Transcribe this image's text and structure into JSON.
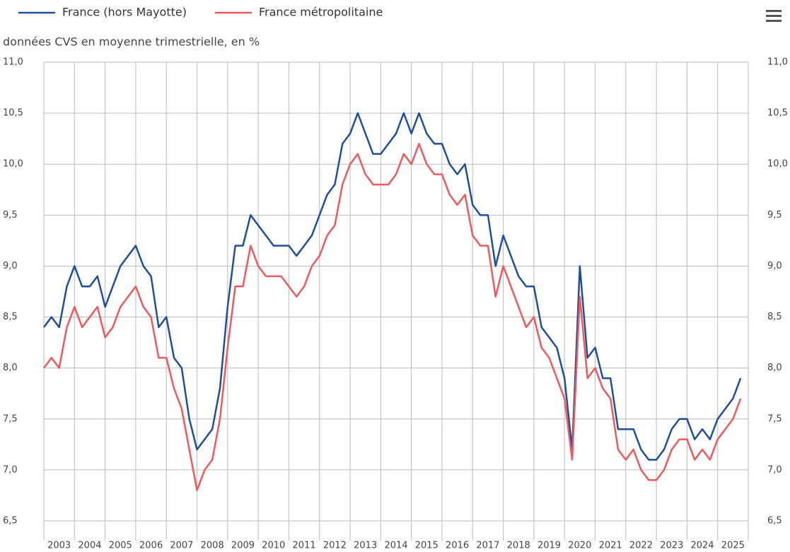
{
  "chart_data": {
    "type": "line",
    "subtitle": "données CVS en moyenne trimestrielle, en %",
    "x": [
      2003,
      2003.25,
      2003.5,
      2003.75,
      2004,
      2004.25,
      2004.5,
      2004.75,
      2005,
      2005.25,
      2005.5,
      2005.75,
      2006,
      2006.25,
      2006.5,
      2006.75,
      2007,
      2007.25,
      2007.5,
      2007.75,
      2008,
      2008.25,
      2008.5,
      2008.75,
      2009,
      2009.25,
      2009.5,
      2009.75,
      2010,
      2010.25,
      2010.5,
      2010.75,
      2011,
      2011.25,
      2011.5,
      2011.75,
      2012,
      2012.25,
      2012.5,
      2012.75,
      2013,
      2013.25,
      2013.5,
      2013.75,
      2014,
      2014.25,
      2014.5,
      2014.75,
      2015,
      2015.25,
      2015.5,
      2015.75,
      2016,
      2016.25,
      2016.5,
      2016.75,
      2017,
      2017.25,
      2017.5,
      2017.75,
      2018,
      2018.25,
      2018.5,
      2018.75,
      2019,
      2019.25,
      2019.5,
      2019.75,
      2020,
      2020.25,
      2020.5,
      2020.75,
      2021,
      2021.25,
      2021.5,
      2021.75,
      2022,
      2022.25,
      2022.5,
      2022.75,
      2023,
      2023.25,
      2023.5,
      2023.75,
      2024,
      2024.25,
      2024.5,
      2024.75,
      2025,
      2025.25,
      2025.5,
      2025.75
    ],
    "series": [
      {
        "name": "France (hors Mayotte)",
        "color": "#1f4e9a",
        "values": [
          8.4,
          8.5,
          8.4,
          8.8,
          9.0,
          8.8,
          8.8,
          8.9,
          8.6,
          8.8,
          9.0,
          9.1,
          9.2,
          9.0,
          8.9,
          8.4,
          8.5,
          8.1,
          8.0,
          7.5,
          7.2,
          7.3,
          7.4,
          7.8,
          8.6,
          9.2,
          9.2,
          9.5,
          9.4,
          9.3,
          9.2,
          9.2,
          9.2,
          9.1,
          9.2,
          9.3,
          9.5,
          9.7,
          9.8,
          10.2,
          10.3,
          10.5,
          10.3,
          10.1,
          10.1,
          10.2,
          10.3,
          10.5,
          10.3,
          10.5,
          10.3,
          10.2,
          10.2,
          10.0,
          9.9,
          10.0,
          9.6,
          9.5,
          9.5,
          9.0,
          9.3,
          9.1,
          8.9,
          8.8,
          8.8,
          8.4,
          8.3,
          8.2,
          7.9,
          7.2,
          9.0,
          8.1,
          8.2,
          7.9,
          7.9,
          7.4,
          7.4,
          7.4,
          7.2,
          7.1,
          7.1,
          7.2,
          7.4,
          7.5,
          7.5,
          7.3,
          7.4,
          7.3,
          7.5,
          7.6,
          7.7,
          7.9
        ]
      },
      {
        "name": "France métropolitaine",
        "color": "#f0585c",
        "values": [
          8.0,
          8.1,
          8.0,
          8.4,
          8.6,
          8.4,
          8.5,
          8.6,
          8.3,
          8.4,
          8.6,
          8.7,
          8.8,
          8.6,
          8.5,
          8.1,
          8.1,
          7.8,
          7.6,
          7.2,
          6.8,
          7.0,
          7.1,
          7.5,
          8.2,
          8.8,
          8.8,
          9.2,
          9.0,
          8.9,
          8.9,
          8.9,
          8.8,
          8.7,
          8.8,
          9.0,
          9.1,
          9.3,
          9.4,
          9.8,
          10.0,
          10.1,
          9.9,
          9.8,
          9.8,
          9.8,
          9.9,
          10.1,
          10.0,
          10.2,
          10.0,
          9.9,
          9.9,
          9.7,
          9.6,
          9.7,
          9.3,
          9.2,
          9.2,
          8.7,
          9.0,
          8.8,
          8.6,
          8.4,
          8.5,
          8.2,
          8.1,
          7.9,
          7.7,
          7.1,
          8.7,
          7.9,
          8.0,
          7.8,
          7.7,
          7.2,
          7.1,
          7.2,
          7.0,
          6.9,
          6.9,
          7.0,
          7.2,
          7.3,
          7.3,
          7.1,
          7.2,
          7.1,
          7.3,
          7.4,
          7.5,
          7.7
        ]
      }
    ],
    "xlim": [
      2003,
      2026
    ],
    "xticks": [
      {
        "value": 2003.5,
        "label": "2003"
      },
      {
        "value": 2004.5,
        "label": "2004"
      },
      {
        "value": 2005.5,
        "label": "2005"
      },
      {
        "value": 2006.5,
        "label": "2006"
      },
      {
        "value": 2007.5,
        "label": "2007"
      },
      {
        "value": 2008.5,
        "label": "2008"
      },
      {
        "value": 2009.5,
        "label": "2009"
      },
      {
        "value": 2010.5,
        "label": "2010"
      },
      {
        "value": 2011.5,
        "label": "2011"
      },
      {
        "value": 2012.5,
        "label": "2012"
      },
      {
        "value": 2013.5,
        "label": "2013"
      },
      {
        "value": 2014.5,
        "label": "2014"
      },
      {
        "value": 2015.5,
        "label": "2015"
      },
      {
        "value": 2016.5,
        "label": "2016"
      },
      {
        "value": 2017.5,
        "label": "2017"
      },
      {
        "value": 2018.5,
        "label": "2018"
      },
      {
        "value": 2019.5,
        "label": "2019"
      },
      {
        "value": 2020.5,
        "label": "2020"
      },
      {
        "value": 2021.5,
        "label": "2021"
      },
      {
        "value": 2022.5,
        "label": "2022"
      },
      {
        "value": 2023.5,
        "label": "2023"
      },
      {
        "value": 2024.5,
        "label": "2024"
      },
      {
        "value": 2025.5,
        "label": "2025"
      }
    ],
    "ylim": [
      6.5,
      11
    ],
    "yticks": [
      {
        "value": 6.5,
        "label": "6,5"
      },
      {
        "value": 7,
        "label": "7,0"
      },
      {
        "value": 7.5,
        "label": "7,5"
      },
      {
        "value": 8,
        "label": "8,0"
      },
      {
        "value": 8.5,
        "label": "8,5"
      },
      {
        "value": 9,
        "label": "9,0"
      },
      {
        "value": 9.5,
        "label": "9,5"
      },
      {
        "value": 10,
        "label": "10,0"
      },
      {
        "value": 10.5,
        "label": "10,5"
      },
      {
        "value": 11,
        "label": "11,0"
      }
    ],
    "grid": true,
    "legend": "top"
  }
}
